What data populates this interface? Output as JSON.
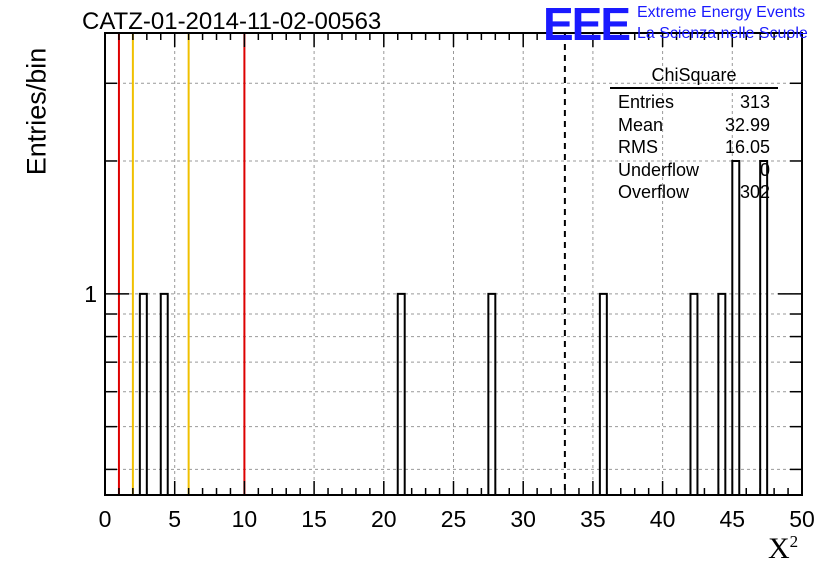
{
  "title": "CATZ-01-2014-11-02-00563",
  "logo": {
    "mark": "EEE",
    "line1": "Extreme Energy Events",
    "line2": "La Scienza nelle Scuole",
    "color": "#1a1aff"
  },
  "stats": {
    "name": "ChiSquare",
    "rows": [
      {
        "label": "Entries",
        "value": "313"
      },
      {
        "label": "Mean",
        "value": "32.99"
      },
      {
        "label": "RMS",
        "value": "16.05"
      },
      {
        "label": "Underflow",
        "value": "0"
      },
      {
        "label": "Overflow",
        "value": "302"
      }
    ]
  },
  "chart_data": {
    "type": "bar",
    "title": "CATZ-01-2014-11-02-00563",
    "xlabel": "X",
    "xlabel_superscript": "2",
    "ylabel": "Entries/bin",
    "xlim": [
      0,
      50
    ],
    "ylim": [
      0.35,
      3.9
    ],
    "log_y": true,
    "grid": true,
    "x_ticks": [
      "0",
      "5",
      "10",
      "15",
      "20",
      "25",
      "30",
      "35",
      "40",
      "45",
      "50"
    ],
    "y_ticks": [
      "1"
    ],
    "bin_width": 0.5,
    "bins": [
      {
        "x": 2.5,
        "count": 1
      },
      {
        "x": 4.0,
        "count": 1
      },
      {
        "x": 21.0,
        "count": 1
      },
      {
        "x": 27.5,
        "count": 1
      },
      {
        "x": 35.5,
        "count": 1
      },
      {
        "x": 42.0,
        "count": 1
      },
      {
        "x": 44.0,
        "count": 1
      },
      {
        "x": 45.0,
        "count": 2
      },
      {
        "x": 47.0,
        "count": 2
      }
    ],
    "vertical_lines": [
      {
        "x": 1,
        "color": "#dd0000",
        "style": "solid"
      },
      {
        "x": 2,
        "color": "#f0c000",
        "style": "solid"
      },
      {
        "x": 6,
        "color": "#f0c000",
        "style": "solid"
      },
      {
        "x": 10,
        "color": "#dd0000",
        "style": "solid"
      },
      {
        "x": 32.99,
        "color": "#000000",
        "style": "dashed"
      }
    ]
  }
}
